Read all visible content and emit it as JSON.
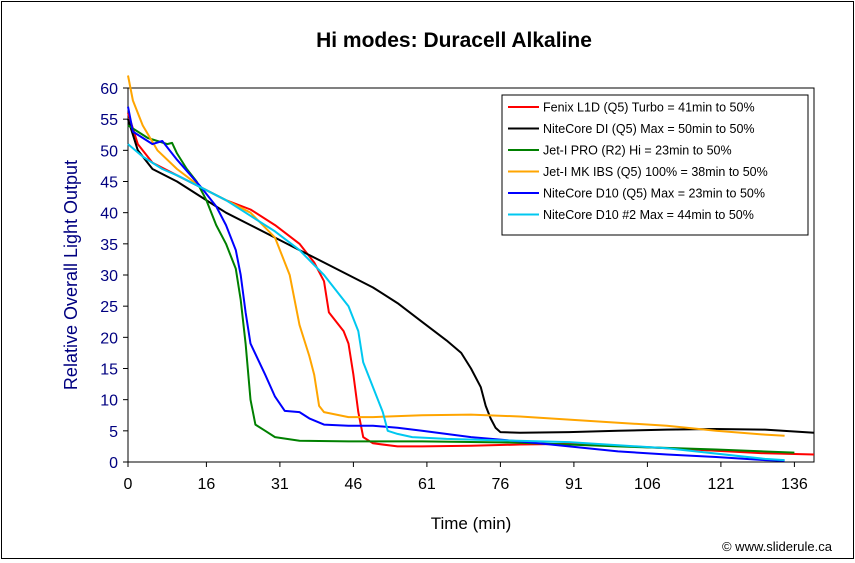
{
  "chart_data": {
    "type": "line",
    "title": "Hi modes: Duracell Alkaline",
    "xlabel": "Time (min)",
    "ylabel": "Relative Overall Light Output",
    "xlim": [
      0,
      140
    ],
    "ylim": [
      0,
      60
    ],
    "xticks": [
      0,
      16,
      31,
      46,
      61,
      76,
      91,
      106,
      121,
      136
    ],
    "yticks": [
      0,
      5,
      10,
      15,
      20,
      25,
      30,
      35,
      40,
      45,
      50,
      55,
      60
    ],
    "legend_position": "top-right",
    "credit": "© www.sliderule.ca",
    "series": [
      {
        "name": "Fenix L1D (Q5) Turbo = 41min to 50%",
        "color": "#ff0000",
        "points": [
          [
            0,
            56
          ],
          [
            2,
            51
          ],
          [
            5,
            48
          ],
          [
            10,
            46
          ],
          [
            15,
            44
          ],
          [
            20,
            42
          ],
          [
            25,
            40.5
          ],
          [
            30,
            38
          ],
          [
            35,
            35
          ],
          [
            38,
            32
          ],
          [
            40,
            29
          ],
          [
            41,
            24
          ],
          [
            42,
            23
          ],
          [
            43,
            22
          ],
          [
            44,
            21
          ],
          [
            45,
            19
          ],
          [
            46,
            14
          ],
          [
            47,
            8
          ],
          [
            48,
            4
          ],
          [
            50,
            3
          ],
          [
            55,
            2.5
          ],
          [
            60,
            2.5
          ],
          [
            70,
            2.6
          ],
          [
            80,
            2.8
          ],
          [
            90,
            2.9
          ],
          [
            100,
            2.6
          ],
          [
            110,
            2.2
          ],
          [
            120,
            1.8
          ],
          [
            130,
            1.4
          ],
          [
            140,
            1.2
          ]
        ]
      },
      {
        "name": "NiteCore DI (Q5) Max = 50min to 50%",
        "color": "#000000",
        "points": [
          [
            0,
            55
          ],
          [
            2,
            50
          ],
          [
            5,
            47
          ],
          [
            10,
            45
          ],
          [
            15,
            42.5
          ],
          [
            20,
            40
          ],
          [
            25,
            38
          ],
          [
            30,
            36
          ],
          [
            35,
            34
          ],
          [
            40,
            32
          ],
          [
            45,
            30
          ],
          [
            50,
            28
          ],
          [
            55,
            25.5
          ],
          [
            60,
            22.5
          ],
          [
            65,
            19.5
          ],
          [
            68,
            17.5
          ],
          [
            70,
            15
          ],
          [
            72,
            12
          ],
          [
            73,
            9
          ],
          [
            74,
            7
          ],
          [
            75,
            5.5
          ],
          [
            76,
            4.8
          ],
          [
            80,
            4.7
          ],
          [
            90,
            4.8
          ],
          [
            100,
            5
          ],
          [
            110,
            5.2
          ],
          [
            120,
            5.3
          ],
          [
            130,
            5.2
          ],
          [
            140,
            4.7
          ]
        ]
      },
      {
        "name": "Jet-I PRO (R2) Hi = 23min to 50%",
        "color": "#008000",
        "points": [
          [
            0,
            54
          ],
          [
            2,
            53
          ],
          [
            4,
            52
          ],
          [
            6,
            51.5
          ],
          [
            8,
            51
          ],
          [
            9,
            51.2
          ],
          [
            10,
            49.5
          ],
          [
            12,
            47
          ],
          [
            14,
            45
          ],
          [
            16,
            42
          ],
          [
            18,
            38
          ],
          [
            20,
            35
          ],
          [
            22,
            31
          ],
          [
            23,
            26
          ],
          [
            24,
            19
          ],
          [
            25,
            10
          ],
          [
            26,
            6
          ],
          [
            28,
            5
          ],
          [
            30,
            4
          ],
          [
            35,
            3.4
          ],
          [
            45,
            3.3
          ],
          [
            60,
            3.3
          ],
          [
            80,
            3.1
          ],
          [
            100,
            2.5
          ],
          [
            120,
            2
          ],
          [
            136,
            1.5
          ]
        ]
      },
      {
        "name": "Jet-I MK IBS (Q5) 100% = 38min to 50%",
        "color": "#ffa500",
        "points": [
          [
            0,
            62
          ],
          [
            1,
            58
          ],
          [
            3,
            54
          ],
          [
            6,
            50
          ],
          [
            10,
            47
          ],
          [
            15,
            44
          ],
          [
            20,
            42
          ],
          [
            25,
            40
          ],
          [
            30,
            36
          ],
          [
            33,
            30
          ],
          [
            35,
            22
          ],
          [
            37,
            17
          ],
          [
            38,
            14
          ],
          [
            39,
            9
          ],
          [
            40,
            8
          ],
          [
            45,
            7.2
          ],
          [
            50,
            7.2
          ],
          [
            60,
            7.5
          ],
          [
            70,
            7.6
          ],
          [
            80,
            7.3
          ],
          [
            90,
            6.8
          ],
          [
            100,
            6.3
          ],
          [
            110,
            5.8
          ],
          [
            120,
            5
          ],
          [
            130,
            4.4
          ],
          [
            134,
            4.2
          ]
        ]
      },
      {
        "name": "NiteCore D10 (Q5) Max = 23min to 50%",
        "color": "#0000ff",
        "points": [
          [
            0,
            57
          ],
          [
            1,
            53
          ],
          [
            3,
            52
          ],
          [
            5,
            51
          ],
          [
            7,
            51.5
          ],
          [
            10,
            48.5
          ],
          [
            15,
            44
          ],
          [
            18,
            41
          ],
          [
            20,
            38
          ],
          [
            22,
            34
          ],
          [
            23,
            30
          ],
          [
            24,
            24
          ],
          [
            25,
            19
          ],
          [
            28,
            14
          ],
          [
            30,
            10.5
          ],
          [
            32,
            8.2
          ],
          [
            35,
            8
          ],
          [
            37,
            7
          ],
          [
            40,
            6
          ],
          [
            45,
            5.8
          ],
          [
            50,
            5.8
          ],
          [
            55,
            5.5
          ],
          [
            60,
            5
          ],
          [
            70,
            4
          ],
          [
            80,
            3.3
          ],
          [
            90,
            2.5
          ],
          [
            100,
            1.7
          ],
          [
            110,
            1.2
          ],
          [
            120,
            0.8
          ],
          [
            130,
            0.3
          ],
          [
            134,
            0.2
          ]
        ]
      },
      {
        "name": "NiteCore D10 #2 Max = 44min to 50%",
        "color": "#00c8f0",
        "points": [
          [
            0,
            51
          ],
          [
            3,
            49
          ],
          [
            7,
            47
          ],
          [
            10,
            46
          ],
          [
            15,
            44
          ],
          [
            20,
            42
          ],
          [
            25,
            39.5
          ],
          [
            30,
            37
          ],
          [
            35,
            34
          ],
          [
            40,
            30
          ],
          [
            45,
            25
          ],
          [
            47,
            21
          ],
          [
            48,
            16
          ],
          [
            50,
            12
          ],
          [
            52,
            8
          ],
          [
            53,
            5
          ],
          [
            55,
            4.5
          ],
          [
            58,
            4
          ],
          [
            65,
            3.7
          ],
          [
            75,
            3.5
          ],
          [
            90,
            3.2
          ],
          [
            110,
            2.2
          ],
          [
            130,
            0.5
          ],
          [
            134,
            0.3
          ]
        ]
      }
    ]
  }
}
